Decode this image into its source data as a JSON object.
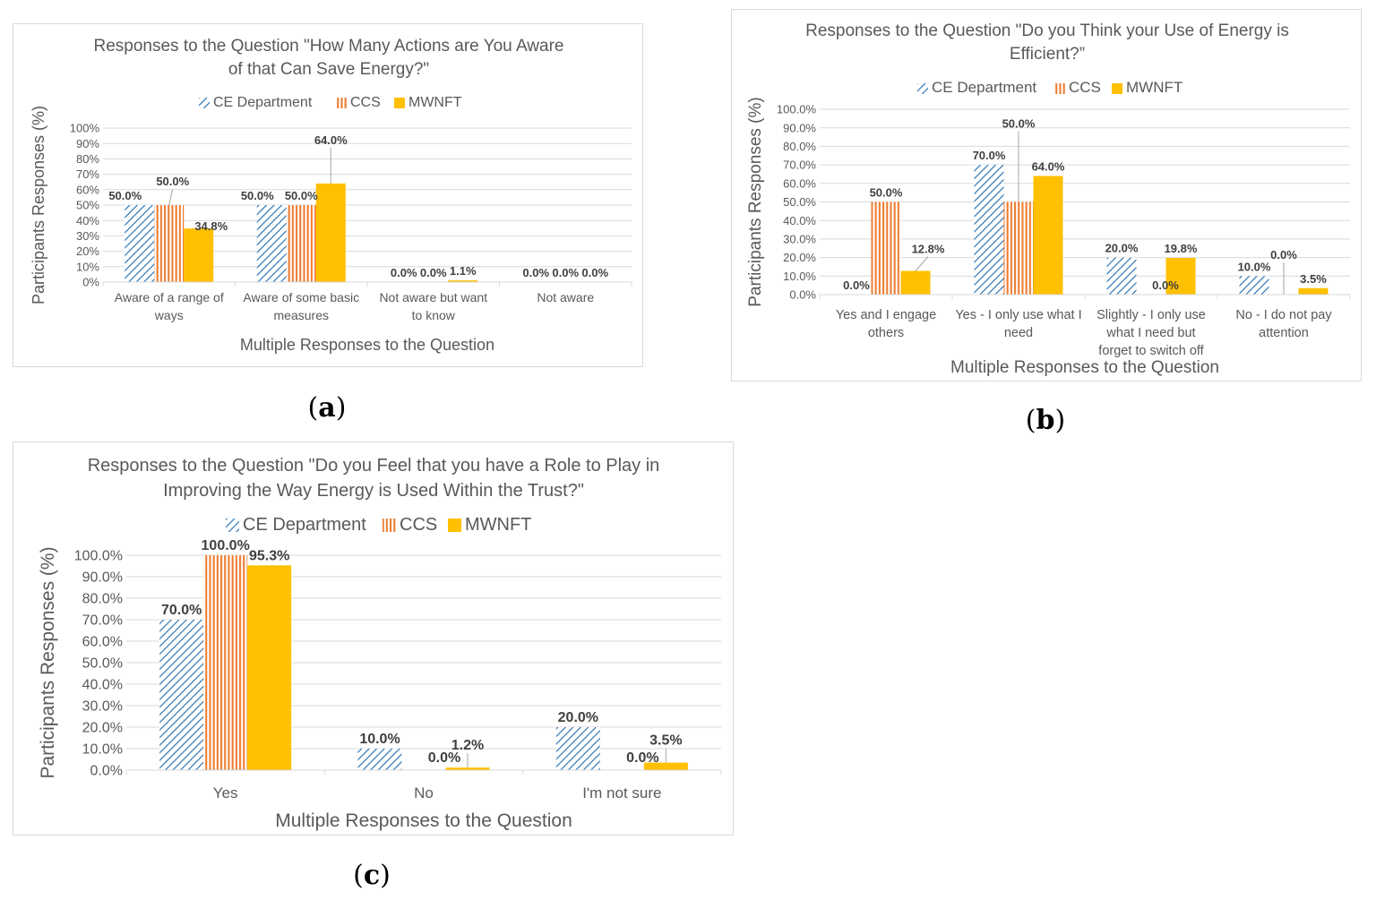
{
  "colors": {
    "ce": "#2e75b6",
    "ccs": "#ed7d31",
    "mwnft": "#ffc000",
    "grid": "#d9d9d9",
    "text": "#595959"
  },
  "chart_data": [
    {
      "id": "a",
      "type": "bar",
      "caption_letter": "a",
      "title": [
        "Responses to the Question \"How Many Actions are You Aware",
        "of that Can Save Energy?\""
      ],
      "ylabel": "Participants Responses (%)",
      "xlabel": "Multiple Responses to the Question",
      "ylim": [
        0,
        100
      ],
      "yticks": [
        0,
        10,
        20,
        30,
        40,
        50,
        60,
        70,
        80,
        90,
        100
      ],
      "ytick_format": "0%",
      "categories": [
        [
          "Aware of a range of",
          "ways"
        ],
        [
          "Aware of some basic",
          "measures"
        ],
        [
          "Not aware but want",
          "to know"
        ],
        [
          "Not aware"
        ]
      ],
      "series": [
        {
          "name": "CE Department",
          "values": [
            50,
            50,
            0,
            0
          ],
          "labels": [
            "50.0%",
            "50.0%",
            "0.0%",
            "0.0%"
          ]
        },
        {
          "name": "CCS",
          "values": [
            50,
            50,
            0,
            0
          ],
          "labels": [
            "50.0%",
            "50.0%",
            "0.0%",
            "0.0%"
          ]
        },
        {
          "name": "MWNFT",
          "values": [
            34.8,
            64,
            1.1,
            0
          ],
          "labels": [
            "34.8%",
            "64.0%",
            "1.1%",
            "0.0%"
          ]
        }
      ]
    },
    {
      "id": "b",
      "type": "bar",
      "caption_letter": "b",
      "title": [
        "Responses to the Question \"Do you Think your Use of Energy is",
        "Efficient?”"
      ],
      "ylabel": "Participants Responses (%)",
      "xlabel": "Multiple Responses to the Question",
      "ylim": [
        0,
        100
      ],
      "yticks": [
        0,
        10,
        20,
        30,
        40,
        50,
        60,
        70,
        80,
        90,
        100
      ],
      "ytick_format": "0.0%",
      "categories": [
        [
          "Yes and I engage",
          "others"
        ],
        [
          "Yes - I only use what I",
          "need"
        ],
        [
          "Slightly - I only use",
          "what I need but",
          "forget to switch off"
        ],
        [
          "No - I do not pay",
          "attention"
        ]
      ],
      "series": [
        {
          "name": "CE Department",
          "values": [
            0,
            70,
            20,
            10
          ],
          "labels": [
            "0.0%",
            "70.0%",
            "20.0%",
            "10.0%"
          ]
        },
        {
          "name": "CCS",
          "values": [
            50,
            50,
            0,
            0
          ],
          "labels": [
            "50.0%",
            "50.0%",
            "0.0%",
            "0.0%"
          ]
        },
        {
          "name": "MWNFT",
          "values": [
            12.8,
            64,
            19.8,
            3.5
          ],
          "labels": [
            "12.8%",
            "64.0%",
            "19.8%",
            "3.5%"
          ]
        }
      ]
    },
    {
      "id": "c",
      "type": "bar",
      "caption_letter": "c",
      "title": [
        "Responses to the Question \"Do you Feel that you have a Role to Play in",
        "Improving the Way Energy is Used Within the Trust?\""
      ],
      "ylabel": "Participants Responses (%)",
      "xlabel": "Multiple Responses to the Question",
      "ylim": [
        0,
        100
      ],
      "yticks": [
        0,
        10,
        20,
        30,
        40,
        50,
        60,
        70,
        80,
        90,
        100
      ],
      "ytick_format": "0.0%",
      "categories": [
        [
          "Yes"
        ],
        [
          "No"
        ],
        [
          "I'm not sure"
        ]
      ],
      "series": [
        {
          "name": "CE Department",
          "values": [
            70,
            10,
            20
          ],
          "labels": [
            "70.0%",
            "10.0%",
            "20.0%"
          ]
        },
        {
          "name": "CCS",
          "values": [
            100,
            0,
            0
          ],
          "labels": [
            "100.0%",
            "0.0%",
            "0.0%"
          ]
        },
        {
          "name": "MWNFT",
          "values": [
            95.3,
            1.2,
            3.5
          ],
          "labels": [
            "95.3%",
            "1.2%",
            "3.5%"
          ]
        }
      ]
    }
  ]
}
